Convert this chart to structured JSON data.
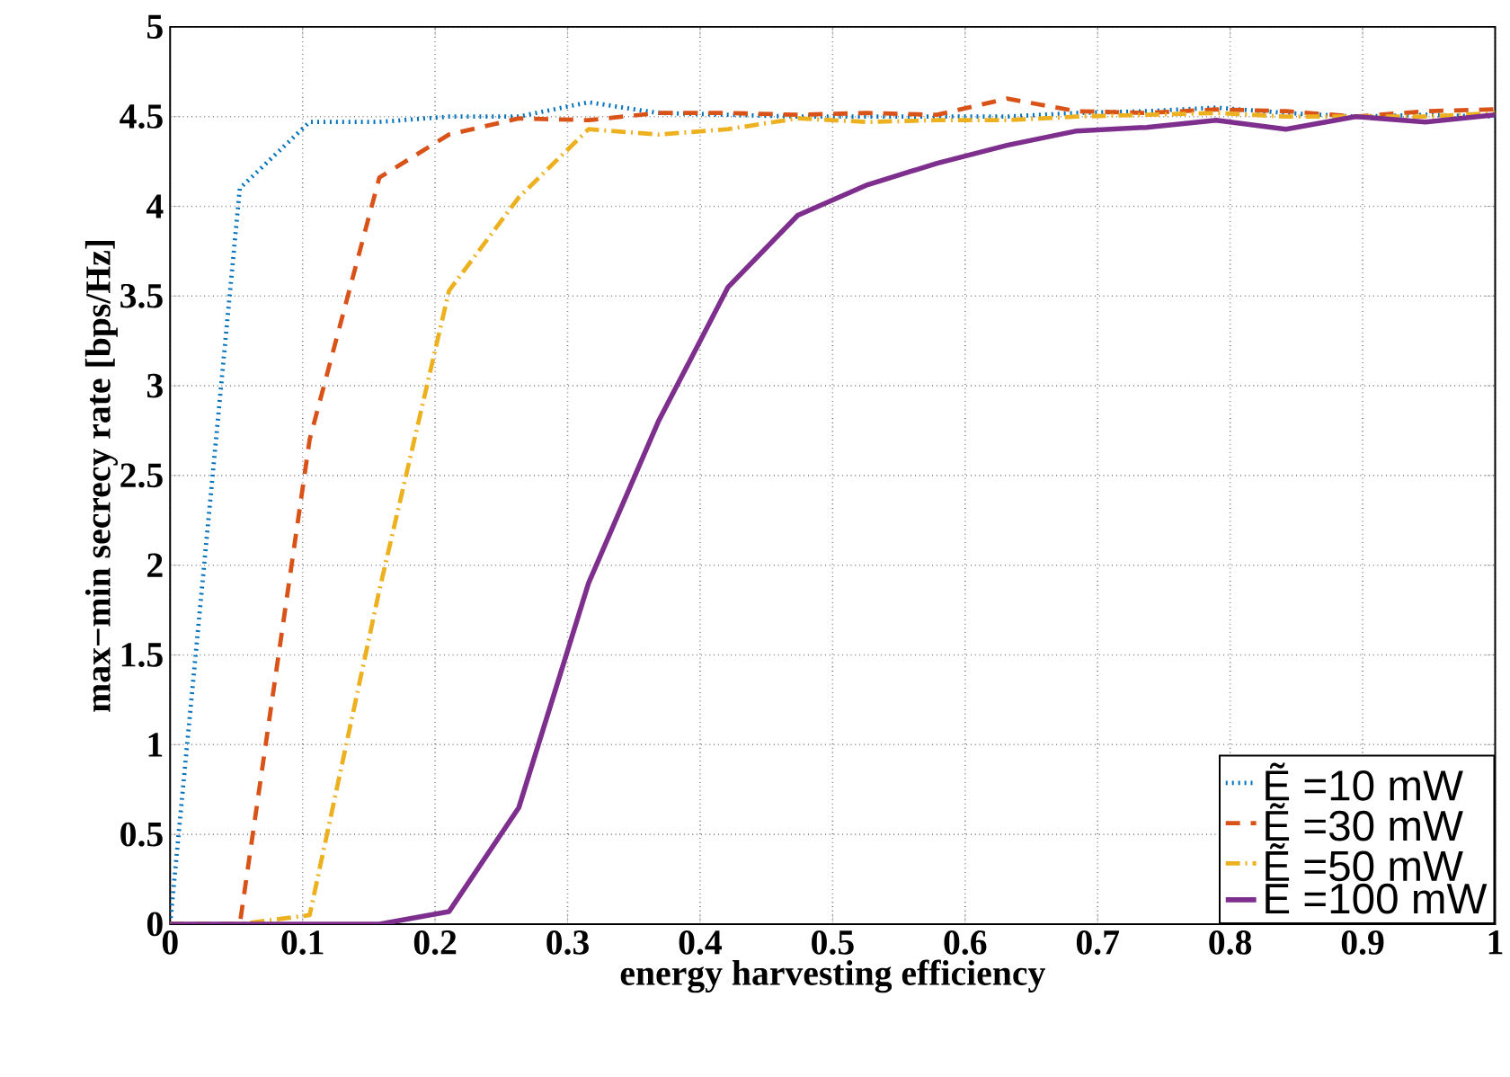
{
  "chart_data": {
    "type": "line",
    "xlabel": "energy harvesting efficiency",
    "ylabel": "max−min secrecy rate [bps/Hz]",
    "x": [
      0,
      0.0526,
      0.1053,
      0.1579,
      0.2105,
      0.2632,
      0.3158,
      0.3684,
      0.4211,
      0.4737,
      0.5263,
      0.5789,
      0.6316,
      0.6842,
      0.7368,
      0.7895,
      0.8421,
      0.8947,
      0.9474,
      1
    ],
    "series": [
      {
        "name": "Ẽ =10 mW",
        "color": "#0072bd",
        "line_style": "dotted",
        "values": [
          0,
          4.1,
          4.47,
          4.47,
          4.5,
          4.5,
          4.58,
          4.52,
          4.51,
          4.5,
          4.5,
          4.5,
          4.5,
          4.52,
          4.53,
          4.55,
          4.52,
          4.5,
          4.51,
          4.5
        ]
      },
      {
        "name": "Ẽ =30 mW",
        "color": "#d95319",
        "line_style": "dashed",
        "values": [
          0,
          0,
          2.7,
          4.16,
          4.4,
          4.49,
          4.48,
          4.52,
          4.52,
          4.51,
          4.52,
          4.51,
          4.6,
          4.53,
          4.52,
          4.54,
          4.53,
          4.5,
          4.53,
          4.54
        ]
      },
      {
        "name": "Ẽ =50 mW",
        "color": "#edb120",
        "line_style": "dashdot",
        "values": [
          0,
          0,
          0.05,
          1.86,
          3.53,
          4.05,
          4.43,
          4.4,
          4.43,
          4.49,
          4.47,
          4.48,
          4.48,
          4.5,
          4.51,
          4.52,
          4.5,
          4.5,
          4.5,
          4.52
        ]
      },
      {
        "name": "E =100 mW",
        "color": "#7e2f8e",
        "line_style": "solid",
        "values": [
          0,
          0,
          0,
          0,
          0.07,
          0.65,
          1.9,
          2.8,
          3.55,
          3.95,
          4.12,
          4.24,
          4.34,
          4.42,
          4.44,
          4.48,
          4.43,
          4.5,
          4.47,
          4.51
        ]
      }
    ],
    "xlim": [
      0,
      1
    ],
    "ylim": [
      0,
      5
    ],
    "xticks": [
      0,
      0.1,
      0.2,
      0.3,
      0.4,
      0.5,
      0.6,
      0.7,
      0.8,
      0.9,
      1
    ],
    "yticks": [
      0,
      0.5,
      1,
      1.5,
      2,
      2.5,
      3,
      3.5,
      4,
      4.5,
      5
    ],
    "grid": true,
    "legend": "bottom right"
  }
}
